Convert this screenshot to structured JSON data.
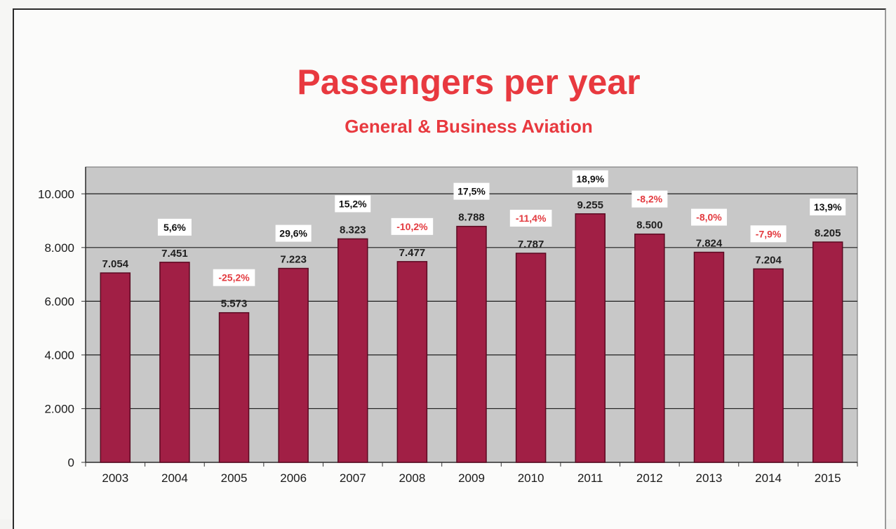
{
  "colors": {
    "bar": "#a11f45",
    "bar_stroke": "#5b0a22",
    "plot_bg": "#c8c8c8",
    "title": "#e8393f",
    "positive_change": "#111111",
    "negative_change": "#e33a3f"
  },
  "chart_data": {
    "type": "bar",
    "title": "Passengers per year",
    "subtitle": "General & Business Aviation",
    "xlabel": "",
    "ylabel": "",
    "ylim": [
      0,
      11000
    ],
    "grid": true,
    "yticks": [
      {
        "value": 0,
        "label": "0"
      },
      {
        "value": 2000,
        "label": "2.000"
      },
      {
        "value": 4000,
        "label": "4.000"
      },
      {
        "value": 6000,
        "label": "6.000"
      },
      {
        "value": 8000,
        "label": "8.000"
      },
      {
        "value": 10000,
        "label": "10.000"
      }
    ],
    "categories": [
      "2003",
      "2004",
      "2005",
      "2006",
      "2007",
      "2008",
      "2009",
      "2010",
      "2011",
      "2012",
      "2013",
      "2014",
      "2015"
    ],
    "values": [
      7054,
      7451,
      5573,
      7223,
      8323,
      7477,
      8788,
      7787,
      9255,
      8500,
      7824,
      7204,
      8205
    ],
    "value_labels": [
      "7.054",
      "7.451",
      "5.573",
      "7.223",
      "8.323",
      "7.477",
      "8.788",
      "7.787",
      "9.255",
      "8.500",
      "7.824",
      "7.204",
      "8.205"
    ],
    "change_labels": [
      "",
      "5,6%",
      "-25,2%",
      "29,6%",
      "15,2%",
      "-10,2%",
      "17,5%",
      "-11,4%",
      "18,9%",
      "-8,2%",
      "-8,0%",
      "-7,9%",
      "13,9%"
    ]
  }
}
